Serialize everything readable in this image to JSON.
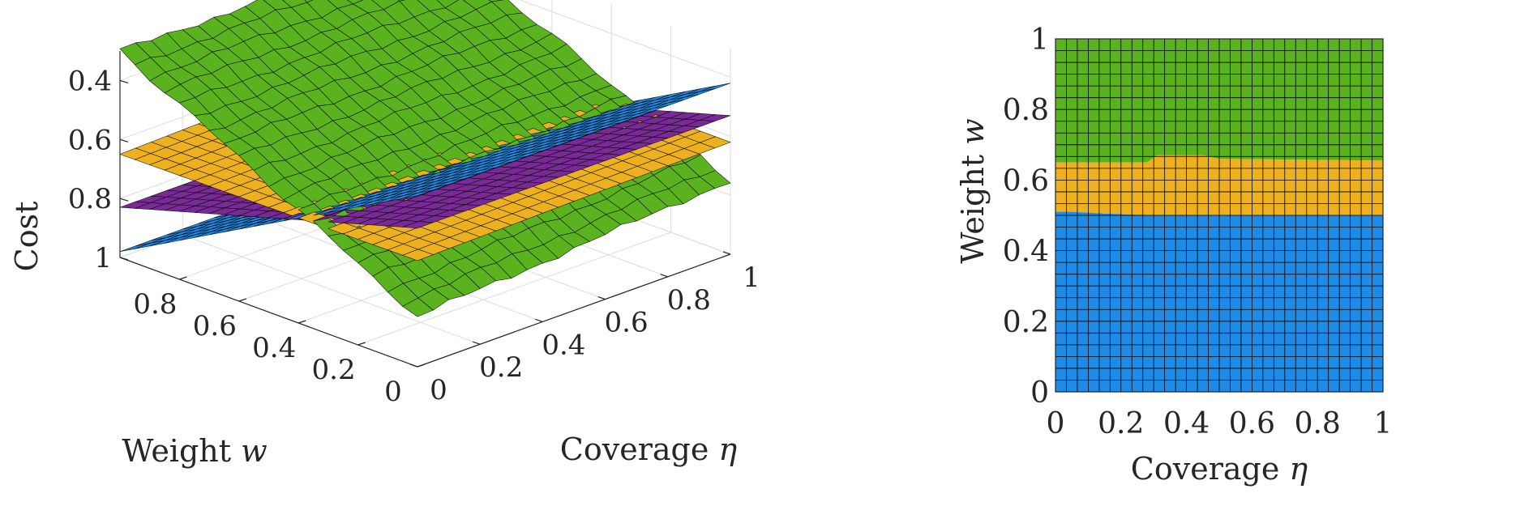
{
  "colors": {
    "green": "#5AB21E",
    "gold": "#EDB11F",
    "blue": "#1E8BE6",
    "purple": "#7A2A96",
    "mesh": "#000000",
    "axis": "#262626",
    "grid": "#dcdcdc"
  },
  "chart_data": [
    {
      "type": "surface3d",
      "xlabel_text": "Coverage ",
      "xlabel_sym": "η",
      "ylabel_text": "Weight ",
      "ylabel_sym": "w",
      "zlabel": "Cost",
      "x_ticks": [
        "0",
        "0.2",
        "0.4",
        "0.6",
        "0.8",
        "1"
      ],
      "y_ticks": [
        "0",
        "0.2",
        "0.4",
        "0.6",
        "0.8"
      ],
      "z_ticks": [
        "0.4",
        "0.6",
        "0.8",
        "1"
      ],
      "xlim": [
        0,
        1
      ],
      "ylim": [
        0,
        1
      ],
      "zlim": [
        0.3,
        1.0
      ],
      "z_direction": "reversed",
      "grid": true,
      "series": [
        {
          "color": "green",
          "corners": {
            "w0_eta0": 0.83,
            "w0_eta1": 0.75,
            "w1_eta0": 0.3,
            "w1_eta1": 0.3
          }
        },
        {
          "color": "gold",
          "corners": {
            "w0_eta0": 0.64,
            "w0_eta1": 0.62,
            "w1_eta0": 0.65,
            "w1_eta1": 0.62
          }
        },
        {
          "color": "purple",
          "corners": {
            "w0_eta0": 0.53,
            "w0_eta1": 0.53,
            "w1_eta0": 0.83,
            "w1_eta1": 0.83
          }
        },
        {
          "color": "blue",
          "corners": {
            "w0_eta0": 0.42,
            "w0_eta1": 0.42,
            "w1_eta0": 0.98,
            "w1_eta1": 0.98
          }
        }
      ]
    },
    {
      "type": "heatmap",
      "xlabel_text": "Coverage ",
      "xlabel_sym": "η",
      "ylabel_text": "Weight ",
      "ylabel_sym": "w",
      "x_ticks": [
        "0",
        "0.2",
        "0.4",
        "0.6",
        "0.8",
        "1"
      ],
      "y_ticks": [
        "0",
        "0.2",
        "0.4",
        "0.6",
        "0.8",
        "1"
      ],
      "xlim": [
        0,
        1
      ],
      "ylim": [
        0,
        1
      ],
      "grid_cells": 30,
      "regions": [
        {
          "color": "blue",
          "from_w": 0.0,
          "to_w_boundary": [
            [
              0,
              0.51
            ],
            [
              0.05,
              0.51
            ],
            [
              0.15,
              0.505
            ],
            [
              0.3,
              0.5
            ],
            [
              1,
              0.5
            ]
          ]
        },
        {
          "color": "gold",
          "from_boundary": "blue",
          "to_w_boundary": [
            [
              0,
              0.65
            ],
            [
              0.28,
              0.65
            ],
            [
              0.31,
              0.67
            ],
            [
              0.45,
              0.67
            ],
            [
              0.5,
              0.66
            ],
            [
              1,
              0.655
            ]
          ]
        },
        {
          "color": "green",
          "from_boundary": "gold",
          "to_w": 1.0
        }
      ]
    }
  ]
}
